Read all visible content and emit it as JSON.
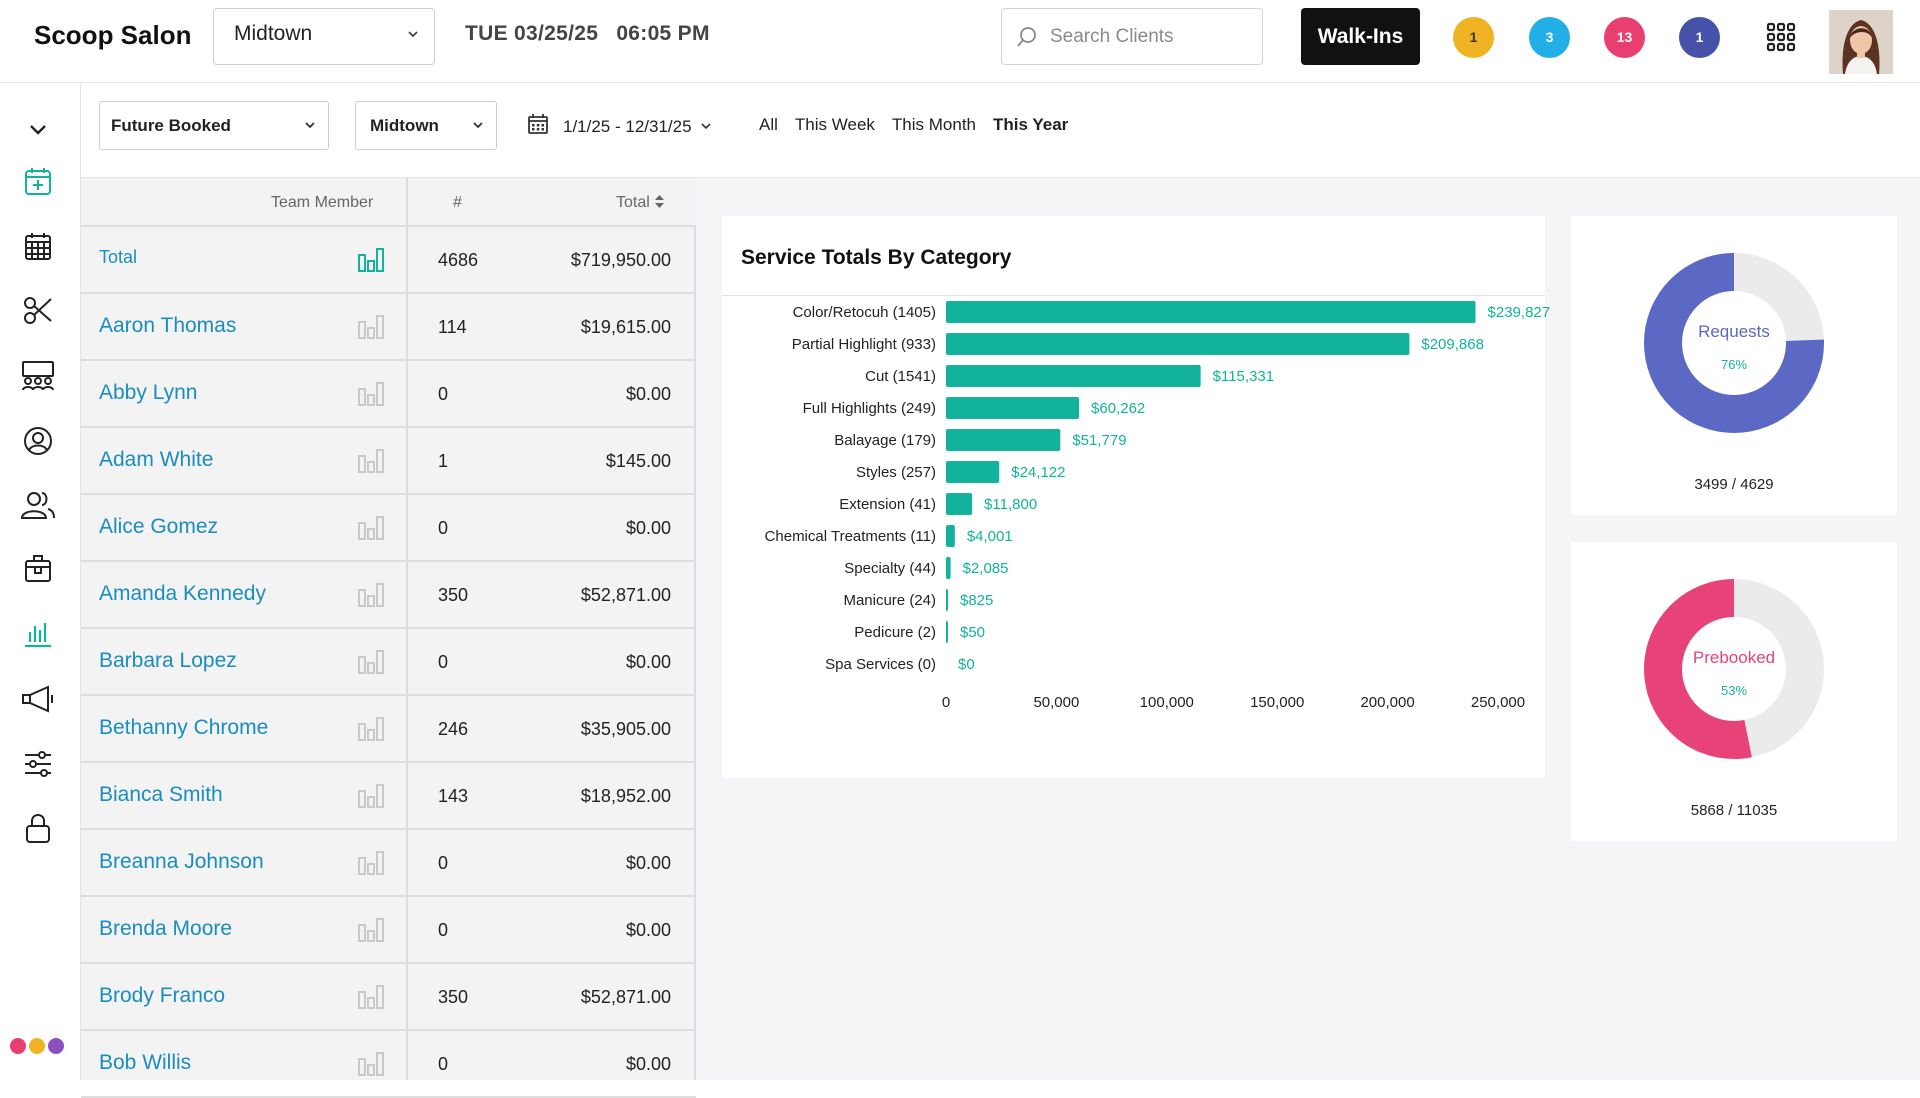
{
  "header": {
    "brand": "Scoop Salon",
    "location": "Midtown",
    "day_date": "TUE 03/25/25",
    "time": "06:05 PM",
    "search_placeholder": "Search Clients",
    "walkins_label": "Walk-Ins",
    "notifications": [
      {
        "count": "1",
        "color": "#f0b323",
        "alert": true
      },
      {
        "count": "3",
        "color": "#22aee6",
        "alert": false
      },
      {
        "count": "13",
        "color": "#e83e72",
        "alert": false
      },
      {
        "count": "1",
        "color": "#4652a8",
        "alert": false
      }
    ]
  },
  "sidebar": {
    "items": [
      "chevron-down-icon",
      "calendar-add-icon",
      "calendar-grid-icon",
      "scissors-icon",
      "staff-icon",
      "client-icon",
      "team-icon",
      "products-icon",
      "reports-icon",
      "marketing-icon",
      "settings-sliders-icon",
      "lock-icon"
    ],
    "active": "reports-icon",
    "dot_colors": [
      "#e83e72",
      "#f0b323",
      "#8a4fbf"
    ]
  },
  "filters": {
    "report_type": "Future Booked",
    "location": "Midtown",
    "date_range": "1/1/25 - 12/31/25",
    "ranges": [
      "All",
      "This Week",
      "This Month",
      "This Year"
    ],
    "active_range": "This Year"
  },
  "table": {
    "headers": {
      "name": "Team Member",
      "count": "#",
      "total": "Total"
    },
    "total_row": {
      "name": "Total",
      "count": "4686",
      "total": "$719,950.00"
    },
    "rows": [
      {
        "name": "Aaron Thomas",
        "count": "114",
        "total": "$19,615.00"
      },
      {
        "name": "Abby Lynn",
        "count": "0",
        "total": "$0.00"
      },
      {
        "name": "Adam White",
        "count": "1",
        "total": "$145.00"
      },
      {
        "name": "Alice Gomez",
        "count": "0",
        "total": "$0.00"
      },
      {
        "name": "Amanda Kennedy",
        "count": "350",
        "total": "$52,871.00"
      },
      {
        "name": "Barbara Lopez",
        "count": "0",
        "total": "$0.00"
      },
      {
        "name": "Bethanny Chrome",
        "count": "246",
        "total": "$35,905.00"
      },
      {
        "name": "Bianca Smith",
        "count": "143",
        "total": "$18,952.00"
      },
      {
        "name": "Breanna Johnson",
        "count": "0",
        "total": "$0.00"
      },
      {
        "name": "Brenda Moore",
        "count": "0",
        "total": "$0.00"
      },
      {
        "name": "Brody Franco",
        "count": "350",
        "total": "$52,871.00"
      },
      {
        "name": "Bob Willis",
        "count": "0",
        "total": "$0.00"
      }
    ]
  },
  "chart_data": [
    {
      "type": "bar",
      "orientation": "horizontal",
      "title": "Service Totals By Category",
      "categories": [
        "Color/Retocuh (1405)",
        "Partial Highlight (933)",
        "Cut (1541)",
        "Full Highlights (249)",
        "Balayage (179)",
        "Styles (257)",
        "Extension (41)",
        "Chemical Treatments (11)",
        "Specialty (44)",
        "Manicure (24)",
        "Pedicure (2)",
        "Spa Services (0)"
      ],
      "values": [
        239827,
        209868,
        115331,
        60262,
        51779,
        24122,
        11800,
        4001,
        2085,
        825,
        50,
        0
      ],
      "value_labels": [
        "$239,827",
        "$209,868",
        "$115,331",
        "$60,262",
        "$51,779",
        "$24,122",
        "$11,800",
        "$4,001",
        "$2,085",
        "$825",
        "$50",
        "$0"
      ],
      "xlim": [
        0,
        250000
      ],
      "xticks": [
        "0",
        "50,000",
        "100,000",
        "150,000",
        "200,000",
        "250,000"
      ],
      "bar_color": "#12b39a",
      "label_color": "#12b39a"
    },
    {
      "type": "pie",
      "style": "donut",
      "label": "Requests",
      "percent_label": "76%",
      "value": 3499,
      "total": 4629,
      "fraction_label": "3499 / 4629",
      "color": "#5b68c4",
      "track_color": "#ebebeb"
    },
    {
      "type": "pie",
      "style": "donut",
      "label": "Prebooked",
      "percent_label": "53%",
      "value": 5868,
      "total": 11035,
      "fraction_label": "5868 / 11035",
      "color": "#e84378",
      "track_color": "#ebebeb"
    }
  ]
}
